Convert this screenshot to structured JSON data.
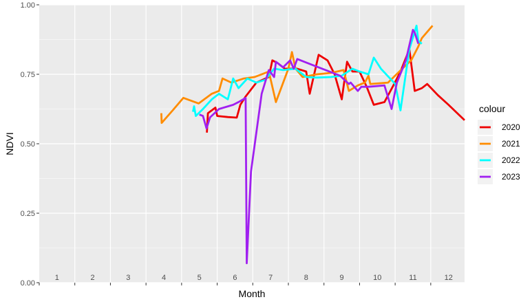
{
  "chart_data": {
    "type": "line",
    "title": "",
    "xlabel": "Month",
    "ylabel": "NDVI",
    "xlim": [
      0.5,
      12.45
    ],
    "ylim": [
      0,
      1
    ],
    "x_tick_labels": [
      "1",
      "2",
      "3",
      "4",
      "5",
      "6",
      "7",
      "8",
      "9",
      "10",
      "11",
      "12"
    ],
    "y_ticks": [
      0.0,
      0.25,
      0.5,
      0.75,
      1.0
    ],
    "y_tick_labels": [
      "0.00",
      "0.25",
      "0.50",
      "0.75",
      "1.00"
    ],
    "grid": true,
    "legend": {
      "title": "colour",
      "position": "right"
    },
    "series": [
      {
        "name": "2020",
        "color": "#ee0000",
        "points": [
          [
            5.21,
            0.54
          ],
          [
            5.24,
            0.61
          ],
          [
            5.45,
            0.63
          ],
          [
            5.5,
            0.6
          ],
          [
            5.8,
            0.596
          ],
          [
            6.05,
            0.594
          ],
          [
            6.15,
            0.64
          ],
          [
            6.3,
            0.67
          ],
          [
            6.6,
            0.72
          ],
          [
            6.95,
            0.74
          ],
          [
            7.05,
            0.8
          ],
          [
            7.2,
            0.79
          ],
          [
            7.4,
            0.77
          ],
          [
            7.75,
            0.77
          ],
          [
            8.0,
            0.76
          ],
          [
            8.1,
            0.68
          ],
          [
            8.35,
            0.82
          ],
          [
            8.6,
            0.8
          ],
          [
            8.8,
            0.75
          ],
          [
            9.0,
            0.66
          ],
          [
            9.15,
            0.795
          ],
          [
            9.3,
            0.76
          ],
          [
            9.5,
            0.76
          ],
          [
            9.7,
            0.705
          ],
          [
            9.9,
            0.64
          ],
          [
            10.2,
            0.65
          ],
          [
            10.45,
            0.71
          ],
          [
            10.65,
            0.76
          ],
          [
            10.9,
            0.84
          ],
          [
            11.05,
            0.69
          ],
          [
            11.25,
            0.7
          ],
          [
            11.4,
            0.715
          ],
          [
            11.7,
            0.675
          ],
          [
            12.0,
            0.64
          ],
          [
            12.45,
            0.585
          ]
        ]
      },
      {
        "name": "2021",
        "color": "#ff8c00",
        "points": [
          [
            3.93,
            0.61
          ],
          [
            3.94,
            0.575
          ],
          [
            4.25,
            0.62
          ],
          [
            4.55,
            0.665
          ],
          [
            4.98,
            0.645
          ],
          [
            5.35,
            0.68
          ],
          [
            5.55,
            0.69
          ],
          [
            5.65,
            0.735
          ],
          [
            5.9,
            0.72
          ],
          [
            6.25,
            0.735
          ],
          [
            6.55,
            0.74
          ],
          [
            6.95,
            0.76
          ],
          [
            7.15,
            0.65
          ],
          [
            7.5,
            0.77
          ],
          [
            7.6,
            0.83
          ],
          [
            7.7,
            0.77
          ],
          [
            7.9,
            0.74
          ],
          [
            8.3,
            0.75
          ],
          [
            8.7,
            0.755
          ],
          [
            9.05,
            0.765
          ],
          [
            9.2,
            0.69
          ],
          [
            9.45,
            0.71
          ],
          [
            9.65,
            0.72
          ],
          [
            9.75,
            0.745
          ],
          [
            9.8,
            0.715
          ],
          [
            10.3,
            0.72
          ],
          [
            10.7,
            0.77
          ],
          [
            10.95,
            0.8
          ],
          [
            11.15,
            0.85
          ],
          [
            11.25,
            0.88
          ],
          [
            11.55,
            0.925
          ]
        ]
      },
      {
        "name": "2022",
        "color": "#00ffff",
        "points": [
          [
            4.82,
            0.615
          ],
          [
            4.85,
            0.635
          ],
          [
            4.9,
            0.6
          ],
          [
            5.1,
            0.625
          ],
          [
            5.35,
            0.66
          ],
          [
            5.55,
            0.68
          ],
          [
            5.8,
            0.66
          ],
          [
            5.95,
            0.735
          ],
          [
            6.1,
            0.7
          ],
          [
            6.35,
            0.735
          ],
          [
            6.6,
            0.72
          ],
          [
            6.85,
            0.73
          ],
          [
            7.1,
            0.77
          ],
          [
            7.35,
            0.765
          ],
          [
            7.7,
            0.77
          ],
          [
            8.0,
            0.74
          ],
          [
            8.3,
            0.738
          ],
          [
            8.7,
            0.74
          ],
          [
            9.0,
            0.745
          ],
          [
            9.3,
            0.77
          ],
          [
            9.5,
            0.76
          ],
          [
            9.75,
            0.75
          ],
          [
            9.9,
            0.81
          ],
          [
            10.1,
            0.77
          ],
          [
            10.5,
            0.715
          ],
          [
            10.65,
            0.62
          ],
          [
            10.9,
            0.84
          ],
          [
            11.1,
            0.925
          ],
          [
            11.15,
            0.87
          ],
          [
            11.25,
            0.86
          ]
        ]
      },
      {
        "name": "2023",
        "color": "#a020f0",
        "points": [
          [
            5.0,
            0.605
          ],
          [
            5.1,
            0.6
          ],
          [
            5.2,
            0.555
          ],
          [
            5.3,
            0.595
          ],
          [
            5.55,
            0.625
          ],
          [
            5.95,
            0.64
          ],
          [
            6.1,
            0.65
          ],
          [
            6.3,
            0.665
          ],
          [
            6.33,
            0.07
          ],
          [
            6.45,
            0.4
          ],
          [
            6.75,
            0.68
          ],
          [
            6.95,
            0.765
          ],
          [
            7.1,
            0.74
          ],
          [
            7.15,
            0.795
          ],
          [
            7.35,
            0.775
          ],
          [
            7.55,
            0.8
          ],
          [
            7.65,
            0.77
          ],
          [
            7.75,
            0.805
          ],
          [
            8.15,
            0.785
          ],
          [
            8.55,
            0.765
          ],
          [
            8.95,
            0.745
          ],
          [
            9.2,
            0.715
          ],
          [
            9.25,
            0.72
          ],
          [
            9.45,
            0.69
          ],
          [
            9.55,
            0.705
          ],
          [
            9.75,
            0.705
          ],
          [
            10.2,
            0.71
          ],
          [
            10.4,
            0.625
          ],
          [
            10.55,
            0.72
          ],
          [
            10.8,
            0.8
          ],
          [
            11.0,
            0.91
          ],
          [
            11.05,
            0.9
          ],
          [
            11.15,
            0.86
          ]
        ]
      }
    ]
  }
}
